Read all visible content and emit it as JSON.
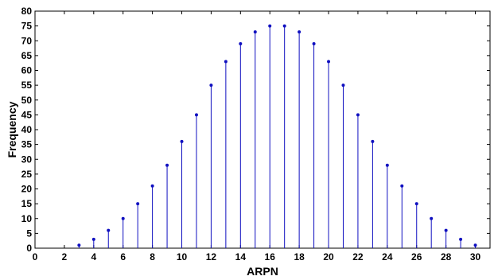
{
  "chart_data": {
    "type": "stem",
    "xlabel": "ARPN",
    "ylabel": "Frequency",
    "xlim": [
      0,
      31
    ],
    "ylim": [
      0,
      80
    ],
    "x_ticks": [
      0,
      2,
      4,
      6,
      8,
      10,
      12,
      14,
      16,
      18,
      20,
      22,
      24,
      26,
      28,
      30
    ],
    "y_ticks": [
      0,
      5,
      10,
      15,
      20,
      25,
      30,
      35,
      40,
      45,
      50,
      55,
      60,
      65,
      70,
      75,
      80
    ],
    "grid": false,
    "series": [
      {
        "color": "#1010c0",
        "x": [
          3,
          4,
          5,
          6,
          7,
          8,
          9,
          10,
          11,
          12,
          13,
          14,
          15,
          16,
          17,
          18,
          19,
          20,
          21,
          22,
          23,
          24,
          25,
          26,
          27,
          28,
          29,
          30
        ],
        "y": [
          1,
          3,
          6,
          10,
          15,
          21,
          28,
          36,
          45,
          55,
          63,
          69,
          73,
          75,
          75,
          73,
          69,
          63,
          55,
          45,
          36,
          28,
          21,
          15,
          10,
          6,
          3,
          1
        ]
      }
    ]
  }
}
